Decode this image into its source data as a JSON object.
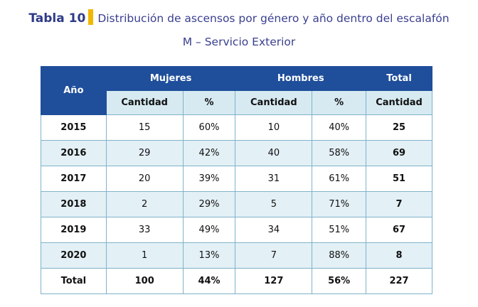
{
  "caption": {
    "label": "Tabla 10",
    "title_line1": "Distribución de ascensos por género y año dentro del escalafón",
    "title_line2": "M – Servicio Exterior"
  },
  "colors": {
    "header_bg": "#1f4e9b",
    "subheader_bg": "#d7eaf2",
    "alt_row_bg": "#e3f0f6",
    "accent_bar": "#f2b705",
    "caption_text": "#3a3f8f"
  },
  "table": {
    "header": {
      "year": "Año",
      "women": "Mujeres",
      "men": "Hombres",
      "total": "Total"
    },
    "subheader": {
      "women_qty": "Cantidad",
      "women_pct": "%",
      "men_qty": "Cantidad",
      "men_pct": "%",
      "total_qty": "Cantidad"
    },
    "rows": [
      {
        "year": "2015",
        "w_qty": "15",
        "w_pct": "60%",
        "m_qty": "10",
        "m_pct": "40%",
        "total": "25"
      },
      {
        "year": "2016",
        "w_qty": "29",
        "w_pct": "42%",
        "m_qty": "40",
        "m_pct": "58%",
        "total": "69"
      },
      {
        "year": "2017",
        "w_qty": "20",
        "w_pct": "39%",
        "m_qty": "31",
        "m_pct": "61%",
        "total": "51"
      },
      {
        "year": "2018",
        "w_qty": "2",
        "w_pct": "29%",
        "m_qty": "5",
        "m_pct": "71%",
        "total": "7"
      },
      {
        "year": "2019",
        "w_qty": "33",
        "w_pct": "49%",
        "m_qty": "34",
        "m_pct": "51%",
        "total": "67"
      },
      {
        "year": "2020",
        "w_qty": "1",
        "w_pct": "13%",
        "m_qty": "7",
        "m_pct": "88%",
        "total": "8"
      }
    ],
    "totals": {
      "label": "Total",
      "w_qty": "100",
      "w_pct": "44%",
      "m_qty": "127",
      "m_pct": "56%",
      "total": "227"
    }
  }
}
